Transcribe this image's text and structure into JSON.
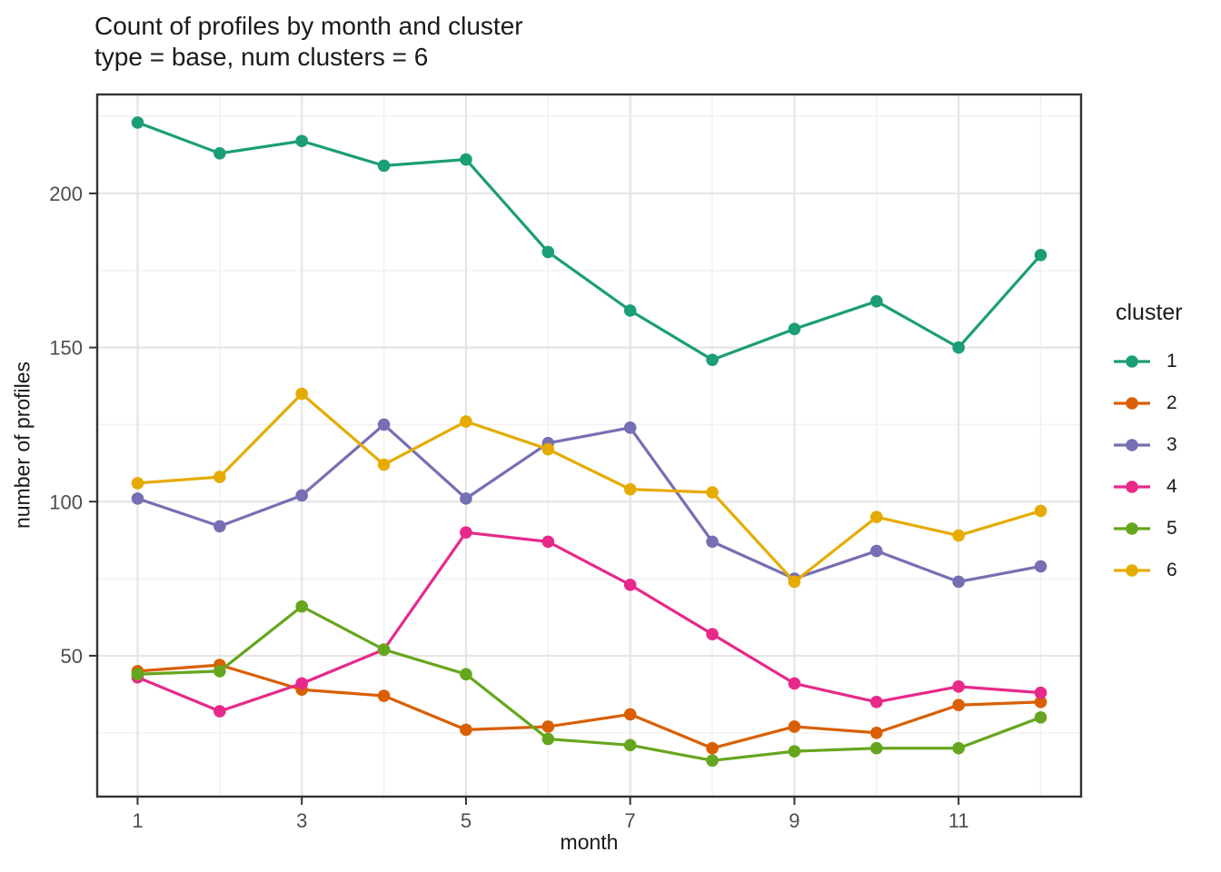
{
  "title": "Count of profiles by month and cluster",
  "subtitle": "type = base, num clusters = 6",
  "legend": {
    "title": "cluster"
  },
  "x_axis": {
    "label": "month",
    "major_ticks": [
      1,
      3,
      5,
      7,
      9,
      11
    ],
    "minor_ticks": [
      2,
      4,
      6,
      8,
      10,
      12
    ]
  },
  "y_axis": {
    "label": "number of profiles",
    "major_ticks": [
      50,
      100,
      150,
      200
    ],
    "minor_ticks": [
      25,
      75,
      125,
      175,
      225
    ]
  },
  "theme": {
    "background": "#ffffff",
    "grid_major": "#e5e5e5",
    "grid_minor": "#f2f2f2",
    "panel_border": "#333333",
    "tick_mark_color": "#333333",
    "tick_label_color": "#4d4d4d"
  },
  "chart_data": {
    "type": "line",
    "title": "Count of profiles by month and cluster",
    "subtitle": "type = base, num clusters = 6",
    "xlabel": "month",
    "ylabel": "number of profiles",
    "x": [
      1,
      2,
      3,
      4,
      5,
      6,
      7,
      8,
      9,
      10,
      11,
      12
    ],
    "x_domain": [
      0.508,
      12.492
    ],
    "y_domain": [
      4.3,
      232.1
    ],
    "grid": true,
    "legend_position": "right",
    "series": [
      {
        "name": "1",
        "color": "#1B9E77",
        "values": [
          223,
          213,
          217,
          209,
          211,
          181,
          162,
          146,
          156,
          165,
          150,
          180
        ]
      },
      {
        "name": "2",
        "color": "#D95F02",
        "values": [
          45,
          47,
          39,
          37,
          26,
          27,
          31,
          20,
          27,
          25,
          34,
          35
        ]
      },
      {
        "name": "3",
        "color": "#7570B3",
        "values": [
          101,
          92,
          102,
          125,
          101,
          119,
          124,
          87,
          75,
          84,
          74,
          79
        ]
      },
      {
        "name": "4",
        "color": "#E7298A",
        "values": [
          43,
          32,
          41,
          52,
          90,
          87,
          73,
          57,
          41,
          35,
          40,
          38
        ]
      },
      {
        "name": "5",
        "color": "#66A61E",
        "values": [
          44,
          45,
          66,
          52,
          44,
          23,
          21,
          16,
          19,
          20,
          20,
          30
        ]
      },
      {
        "name": "6",
        "color": "#E6AB02",
        "values": [
          106,
          108,
          135,
          112,
          126,
          117,
          104,
          103,
          74,
          95,
          89,
          97
        ]
      }
    ]
  }
}
